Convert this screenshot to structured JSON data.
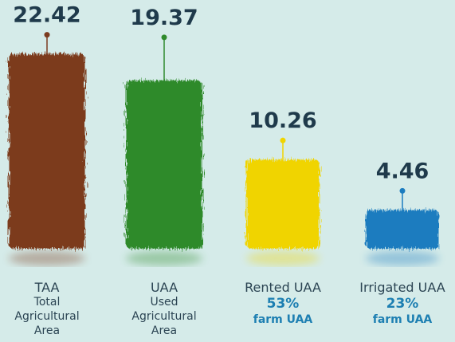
{
  "chart_data": {
    "type": "bar",
    "categories": [
      "TAA",
      "UAA",
      "Rented UAA",
      "Irrigated UAA"
    ],
    "descriptions": [
      "Total Agricultural Area",
      "Used Agricultural Area",
      null,
      null
    ],
    "values": [
      22.42,
      19.37,
      10.26,
      4.46
    ],
    "colors": [
      "#7b3b1f",
      "#2f8a2c",
      "#f0d400",
      "#1b7cbf"
    ],
    "shares": [
      null,
      null,
      53,
      23
    ],
    "share_labels": [
      null,
      null,
      "53%",
      "23%"
    ],
    "share_notes": [
      null,
      null,
      "farm UAA",
      "farm UAA"
    ]
  }
}
